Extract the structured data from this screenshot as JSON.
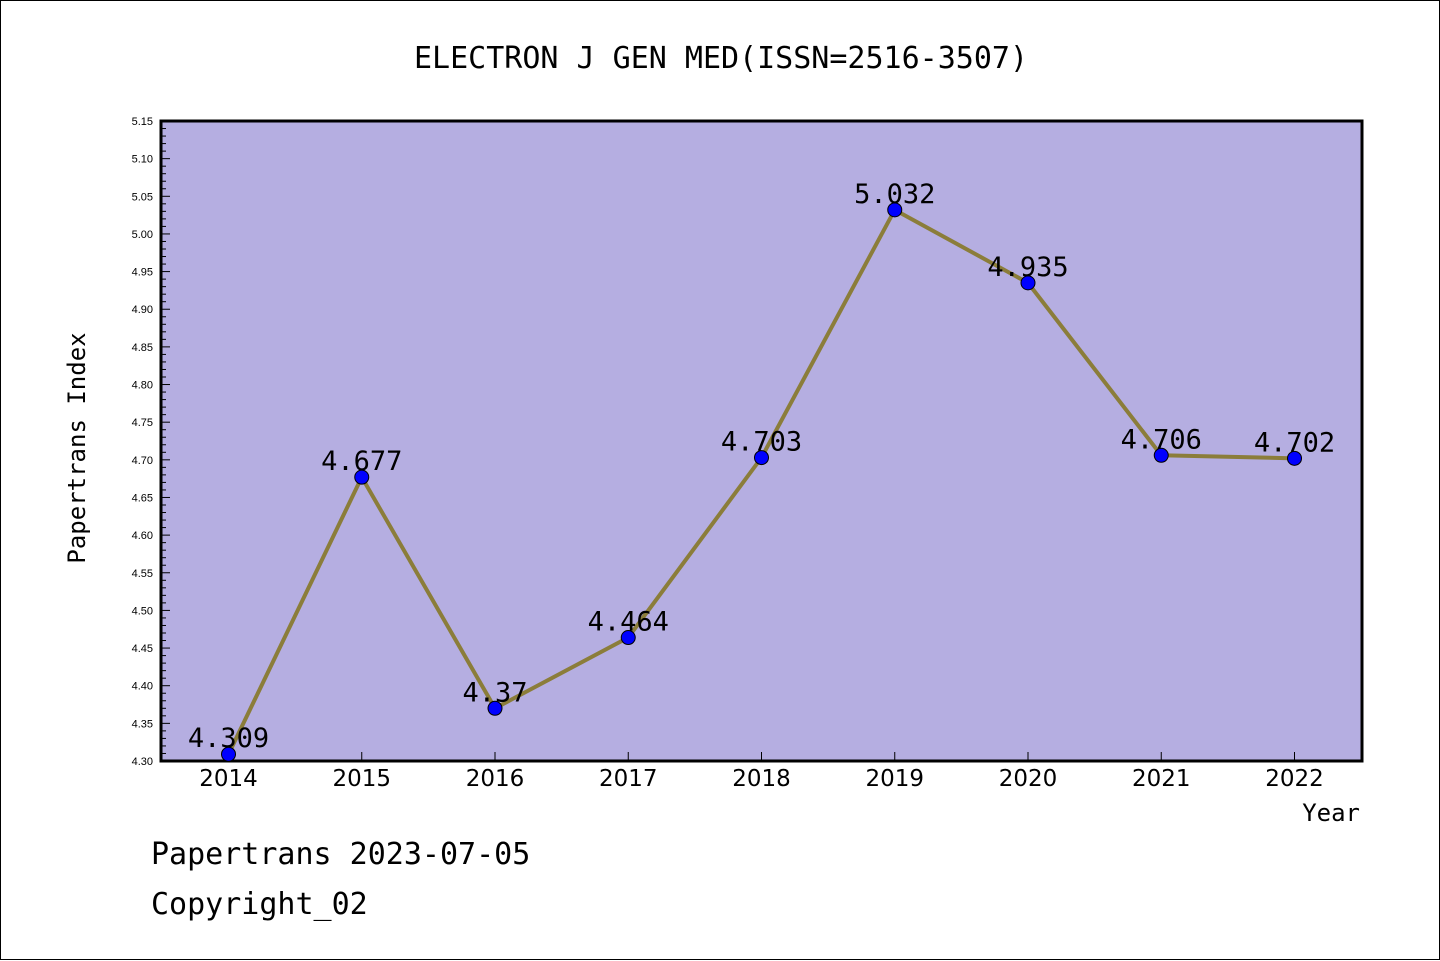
{
  "chart_data": {
    "type": "line",
    "title": "ELECTRON J GEN MED(ISSN=2516-3507)",
    "xlabel": "Year",
    "ylabel": "Papertrans Index",
    "categories": [
      "2014",
      "2015",
      "2016",
      "2017",
      "2018",
      "2019",
      "2020",
      "2021",
      "2022"
    ],
    "series": [
      {
        "values": [
          4.309,
          4.677,
          4.37,
          4.464,
          4.703,
          5.032,
          4.935,
          4.706,
          4.702
        ],
        "labels": [
          "4.309",
          "4.677",
          "4.37",
          "4.464",
          "4.703",
          "5.032",
          "4.935",
          "4.706",
          "4.702"
        ]
      }
    ],
    "ylim": [
      4.3,
      5.15
    ],
    "yticks": [
      "4.30",
      "4.35",
      "4.40",
      "4.45",
      "4.50",
      "4.55",
      "4.60",
      "4.65",
      "4.70",
      "4.75",
      "4.80",
      "4.85",
      "4.90",
      "4.95",
      "5.00",
      "5.05",
      "5.10",
      "5.15"
    ],
    "grid": false,
    "legend": "none",
    "colors": {
      "plot_background": "#b5aee1",
      "line": "#8b7d3a",
      "marker": "#0000ff",
      "frame": "#000000"
    }
  },
  "footer": {
    "line1": "Papertrans 2023-07-05",
    "line2": "Copyright_02"
  }
}
